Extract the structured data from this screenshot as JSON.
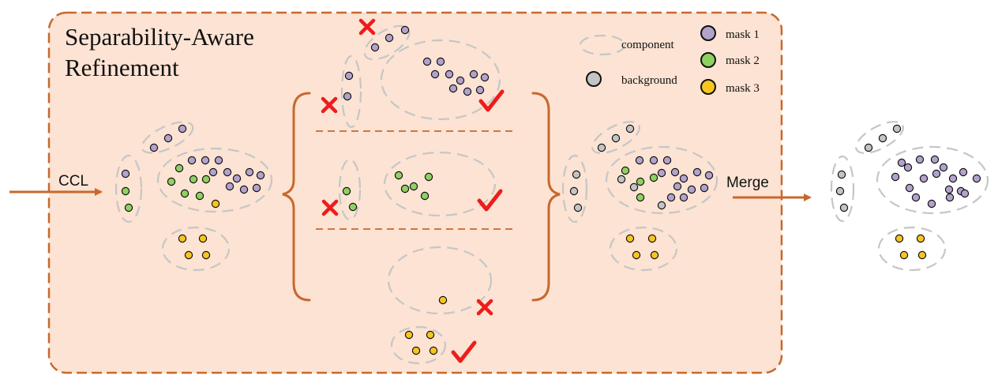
{
  "title": {
    "line1": "Separability-Aware",
    "line2": "Refinement"
  },
  "legend": {
    "component": "component",
    "background": "background",
    "mask1": "mask 1",
    "mask2": "mask 2",
    "mask3": "mask 3"
  },
  "arrows": {
    "ccl": "CCL",
    "merge": "Merge"
  },
  "colors": {
    "panel_fill": "#fce3d3",
    "panel_border": "#c8682e",
    "arrow": "#c8682e",
    "brace": "#c8682e",
    "component_outline": "#c6c6c6",
    "background_point": "#c4c4c4",
    "mask1_point": "#b3a2cc",
    "mask2_point": "#8fd160",
    "mask3_point": "#f7c51f",
    "cross": "#ee1c1c",
    "check": "#ee1c1c"
  },
  "icons": {
    "reject": "cross-icon",
    "accept": "check-icon"
  }
}
